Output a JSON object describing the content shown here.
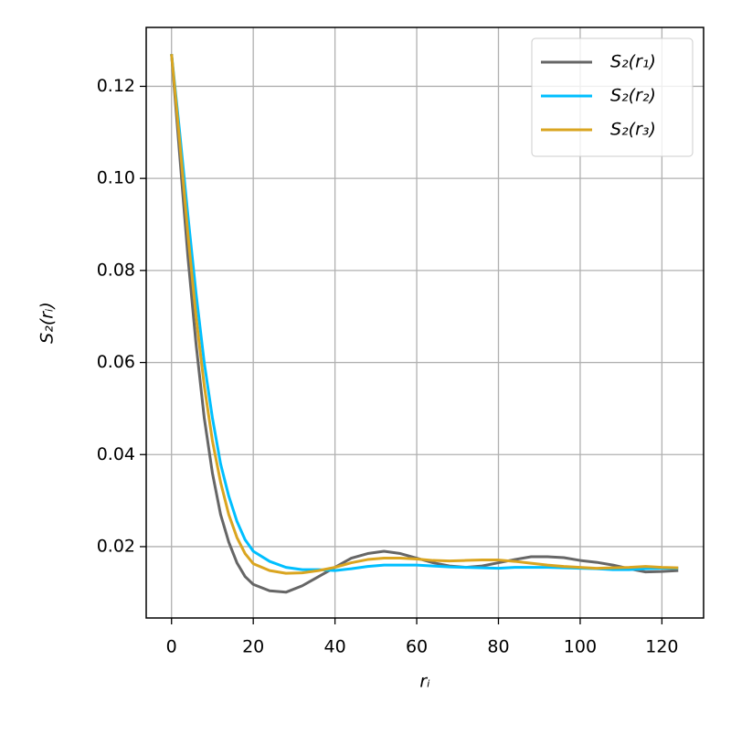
{
  "chart_data": {
    "type": "line",
    "xlabel": "rᵢ",
    "ylabel": "S₂(rᵢ)",
    "x": [
      0,
      2,
      4,
      6,
      8,
      10,
      12,
      14,
      16,
      18,
      20,
      24,
      28,
      32,
      36,
      40,
      44,
      48,
      52,
      56,
      60,
      64,
      68,
      72,
      76,
      80,
      84,
      88,
      92,
      96,
      100,
      104,
      108,
      112,
      116,
      120,
      124
    ],
    "series": [
      {
        "name": "S₂(r₁)",
        "color": "#666666",
        "values": [
          0.127,
          0.105,
          0.083,
          0.064,
          0.048,
          0.036,
          0.027,
          0.021,
          0.0165,
          0.0135,
          0.0118,
          0.0104,
          0.0101,
          0.0115,
          0.0135,
          0.0155,
          0.0175,
          0.0185,
          0.019,
          0.0185,
          0.0175,
          0.0165,
          0.0158,
          0.0155,
          0.0158,
          0.0165,
          0.0172,
          0.0178,
          0.0178,
          0.0176,
          0.017,
          0.0166,
          0.016,
          0.0152,
          0.0145,
          0.0146,
          0.0148
        ]
      },
      {
        "name": "S₂(r₂)",
        "color": "#00bfff",
        "values": [
          0.127,
          0.11,
          0.092,
          0.075,
          0.06,
          0.048,
          0.038,
          0.031,
          0.0255,
          0.0215,
          0.019,
          0.0168,
          0.0155,
          0.015,
          0.015,
          0.0148,
          0.0152,
          0.0157,
          0.016,
          0.016,
          0.016,
          0.0158,
          0.0156,
          0.0155,
          0.0154,
          0.0153,
          0.0155,
          0.0155,
          0.0155,
          0.0154,
          0.0153,
          0.0152,
          0.015,
          0.015,
          0.0152,
          0.0153,
          0.0153
        ]
      },
      {
        "name": "S₂(r₃)",
        "color": "#daa520",
        "values": [
          0.127,
          0.108,
          0.088,
          0.07,
          0.055,
          0.043,
          0.034,
          0.027,
          0.022,
          0.0185,
          0.0163,
          0.0148,
          0.0142,
          0.0143,
          0.0148,
          0.0155,
          0.0165,
          0.0172,
          0.0175,
          0.0175,
          0.0173,
          0.017,
          0.0169,
          0.017,
          0.0171,
          0.0171,
          0.0168,
          0.0164,
          0.016,
          0.0157,
          0.0155,
          0.0153,
          0.0154,
          0.0155,
          0.0157,
          0.0155,
          0.0154
        ]
      }
    ],
    "xlim": [
      -6.2,
      130.2
    ],
    "xticks": [
      0,
      20,
      40,
      60,
      80,
      100,
      120
    ],
    "ylim": [
      0.0045,
      0.1328
    ],
    "yticks": [
      0.02,
      0.04,
      0.06,
      0.08,
      {
        "value": 0.1,
        "label": "0.10"
      },
      0.12
    ],
    "grid": true,
    "legend": "upper right"
  }
}
